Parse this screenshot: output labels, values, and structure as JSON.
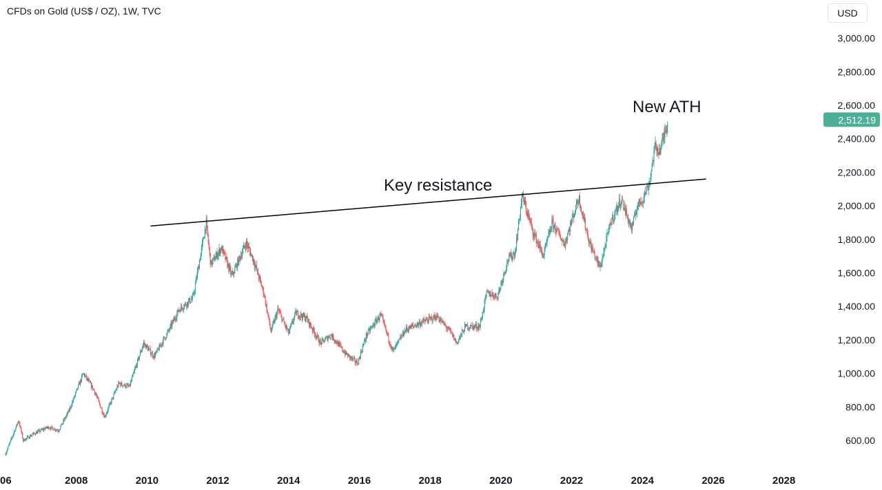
{
  "header": {
    "symbol_title": "CFDs on Gold (US$ / OZ), 1W, TVC"
  },
  "currency_button": {
    "label": "USD"
  },
  "colors": {
    "up": "#26a69a",
    "down": "#ef5350",
    "tag_bg": "#4caf98",
    "text": "#131722"
  },
  "chart_data": {
    "type": "candlestick",
    "title": "CFDs on Gold (US$ / OZ), 1W, TVC",
    "xlabel": "",
    "ylabel": "",
    "y_unit": "USD",
    "xlim": [
      2006.0,
      2029.2
    ],
    "ylim": [
      500,
      3100
    ],
    "y_ticks": [
      "600.00",
      "800.00",
      "1,000.00",
      "1,200.00",
      "1,400.00",
      "1,600.00",
      "1,800.00",
      "2,000.00",
      "2,200.00",
      "2,400.00",
      "2,600.00",
      "2,800.00",
      "3,000.00"
    ],
    "y_tick_values": [
      600,
      800,
      1000,
      1200,
      1400,
      1600,
      1800,
      2000,
      2200,
      2400,
      2600,
      2800,
      3000
    ],
    "x_ticks": [
      "06",
      "2008",
      "2010",
      "2012",
      "2014",
      "2016",
      "2018",
      "2020",
      "2022",
      "2024",
      "2026",
      "2028"
    ],
    "x_tick_values": [
      2006.0,
      2008,
      2010,
      2012,
      2014,
      2016,
      2018,
      2020,
      2022,
      2024,
      2026,
      2028
    ],
    "current_price": {
      "label": "2,512.19",
      "value": 2512.19
    },
    "trendline": {
      "label": "Key resistance",
      "start": [
        2010.1,
        1880
      ],
      "end": [
        2025.8,
        2160
      ]
    },
    "annotations": [
      {
        "text": "New ATH",
        "x": 2024.5,
        "y": 2590
      }
    ],
    "price_path": [
      [
        2006.0,
        520
      ],
      [
        2006.37,
        720
      ],
      [
        2006.5,
        600
      ],
      [
        2006.8,
        640
      ],
      [
        2007.2,
        680
      ],
      [
        2007.5,
        660
      ],
      [
        2007.8,
        780
      ],
      [
        2008.2,
        1000
      ],
      [
        2008.5,
        900
      ],
      [
        2008.8,
        740
      ],
      [
        2009.2,
        940
      ],
      [
        2009.5,
        920
      ],
      [
        2009.9,
        1180
      ],
      [
        2010.2,
        1100
      ],
      [
        2010.6,
        1250
      ],
      [
        2010.9,
        1380
      ],
      [
        2011.3,
        1450
      ],
      [
        2011.67,
        1900
      ],
      [
        2011.8,
        1650
      ],
      [
        2012.1,
        1750
      ],
      [
        2012.4,
        1580
      ],
      [
        2012.8,
        1780
      ],
      [
        2013.0,
        1680
      ],
      [
        2013.3,
        1480
      ],
      [
        2013.5,
        1250
      ],
      [
        2013.7,
        1380
      ],
      [
        2014.0,
        1240
      ],
      [
        2014.2,
        1360
      ],
      [
        2014.5,
        1330
      ],
      [
        2014.9,
        1180
      ],
      [
        2015.2,
        1230
      ],
      [
        2015.6,
        1120
      ],
      [
        2015.95,
        1060
      ],
      [
        2016.2,
        1230
      ],
      [
        2016.6,
        1350
      ],
      [
        2016.95,
        1130
      ],
      [
        2017.3,
        1260
      ],
      [
        2017.7,
        1300
      ],
      [
        2018.2,
        1340
      ],
      [
        2018.6,
        1240
      ],
      [
        2018.75,
        1180
      ],
      [
        2019.0,
        1280
      ],
      [
        2019.4,
        1280
      ],
      [
        2019.6,
        1480
      ],
      [
        2019.9,
        1460
      ],
      [
        2020.2,
        1680
      ],
      [
        2020.4,
        1720
      ],
      [
        2020.6,
        2060
      ],
      [
        2020.9,
        1850
      ],
      [
        2021.2,
        1700
      ],
      [
        2021.45,
        1900
      ],
      [
        2021.8,
        1770
      ],
      [
        2022.2,
        2050
      ],
      [
        2022.5,
        1780
      ],
      [
        2022.8,
        1630
      ],
      [
        2023.1,
        1900
      ],
      [
        2023.4,
        2040
      ],
      [
        2023.7,
        1860
      ],
      [
        2023.85,
        2000
      ],
      [
        2024.0,
        2040
      ],
      [
        2024.2,
        2140
      ],
      [
        2024.35,
        2350
      ],
      [
        2024.5,
        2330
      ],
      [
        2024.72,
        2512
      ]
    ]
  }
}
